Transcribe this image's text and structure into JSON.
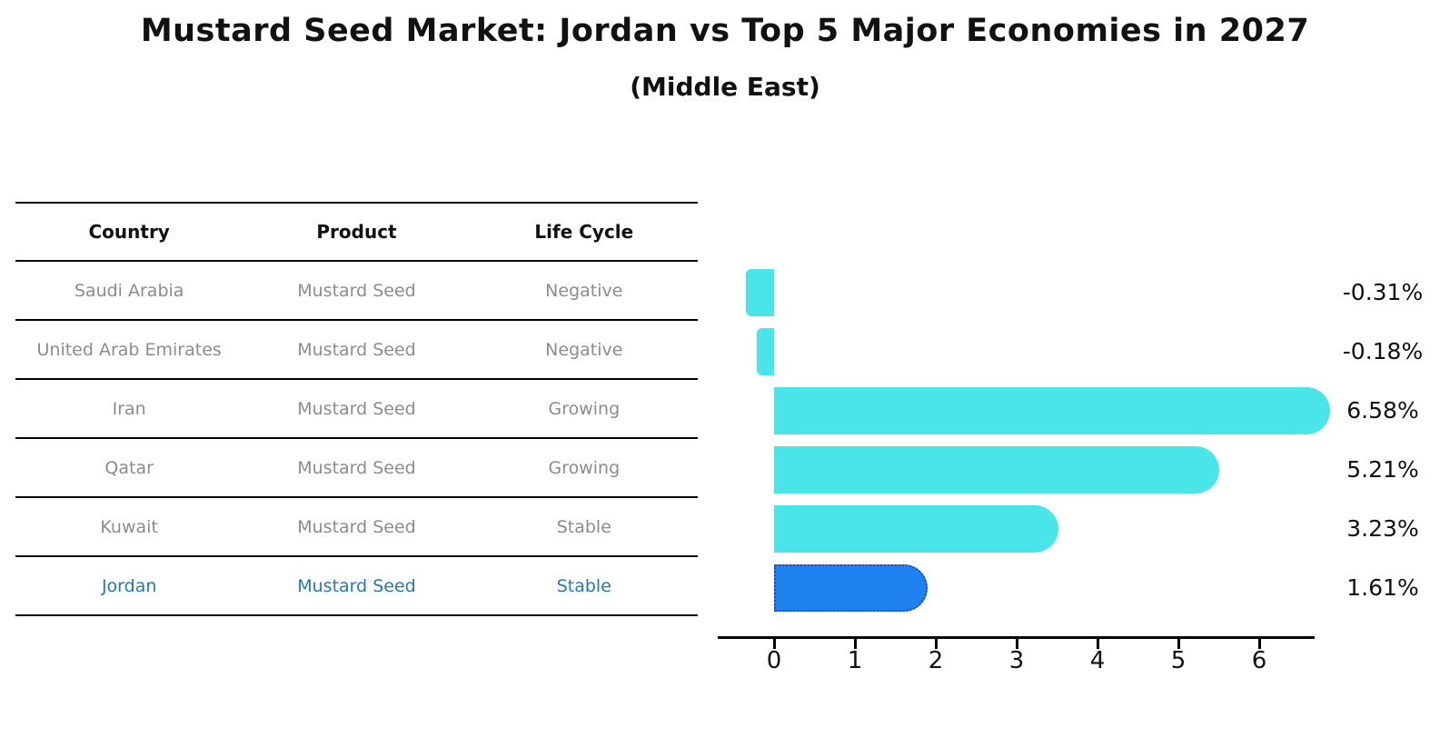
{
  "chart": {
    "title": "Mustard Seed Market: Jordan vs Top 5 Major Economies in 2027",
    "subtitle": "(Middle East)"
  },
  "table": {
    "headers": [
      "Country",
      "Product",
      "Life Cycle"
    ],
    "rows": [
      {
        "country": "Saudi Arabia",
        "product": "Mustard Seed",
        "life_cycle": "Negative",
        "highlight": false
      },
      {
        "country": "United Arab Emirates",
        "product": "Mustard Seed",
        "life_cycle": "Negative",
        "highlight": false
      },
      {
        "country": "Iran",
        "product": "Mustard Seed",
        "life_cycle": "Growing",
        "highlight": false
      },
      {
        "country": "Qatar",
        "product": "Mustard Seed",
        "life_cycle": "Growing",
        "highlight": false
      },
      {
        "country": "Kuwait",
        "product": "Mustard Seed",
        "life_cycle": "Stable",
        "highlight": false
      },
      {
        "country": "Jordan",
        "product": "Mustard Seed",
        "life_cycle": "Stable",
        "highlight": true
      }
    ]
  },
  "chart_data": {
    "type": "bar",
    "orientation": "horizontal",
    "title": "Mustard Seed Market: Jordan vs Top 5 Major Economies in 2027",
    "subtitle": "(Middle East)",
    "categories": [
      "Saudi Arabia",
      "United Arab Emirates",
      "Iran",
      "Qatar",
      "Kuwait",
      "Jordan"
    ],
    "values": [
      -0.31,
      -0.18,
      6.58,
      5.21,
      3.23,
      1.61
    ],
    "value_labels": [
      "-0.31%",
      "-0.18%",
      "6.58%",
      "5.21%",
      "3.23%",
      "1.61%"
    ],
    "x_ticks": [
      0,
      1,
      2,
      3,
      4,
      5,
      6
    ],
    "xlim": [
      -0.7,
      6.7
    ],
    "grid": false,
    "legend": "none",
    "highlight_category": "Jordan"
  },
  "colors": {
    "bar_cyan": "#4ae5e8",
    "highlight_bar_blue": "#1e82f0",
    "highlight_border_blue": "#2448c0",
    "highlight_text_blue": "#2377bd",
    "table_text_gray": "#8c8c8c",
    "axis_black": "#000000"
  }
}
